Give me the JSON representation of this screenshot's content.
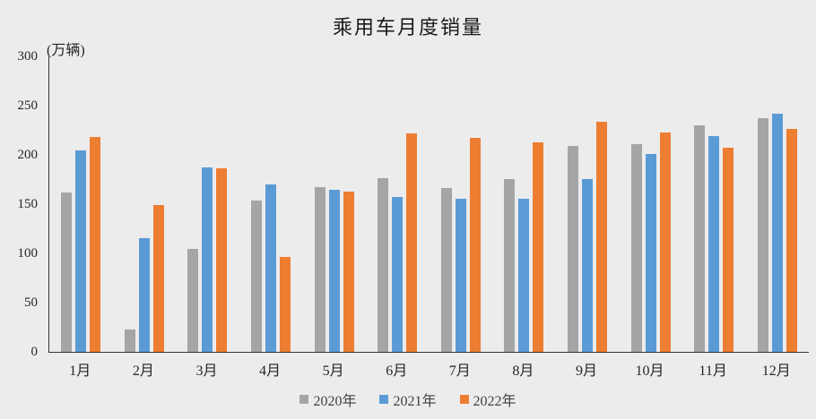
{
  "title": "乘用车月度销量",
  "y_axis": {
    "unit_label": "(万辆)"
  },
  "colors": {
    "background": "#ECECEC",
    "axis": "#333333",
    "series_2020": "#A5A5A5",
    "series_2021": "#5B9BD5",
    "series_2022": "#ED7D31"
  },
  "chart_data": {
    "type": "bar",
    "title": "乘用车月度销量",
    "ylabel": "(万辆)",
    "ylim": [
      0,
      300
    ],
    "y_ticks": [
      0,
      50,
      100,
      150,
      200,
      250,
      300
    ],
    "grid": false,
    "legend_position": "bottom",
    "categories": [
      "1月",
      "2月",
      "3月",
      "4月",
      "5月",
      "6月",
      "7月",
      "8月",
      "9月",
      "10月",
      "11月",
      "12月"
    ],
    "series": [
      {
        "name": "2020年",
        "color": "#A5A5A5",
        "values": [
          161.4,
          22.4,
          104.3,
          153.6,
          167.4,
          176.4,
          166.5,
          175.5,
          208.8,
          211.1,
          229.7,
          237.5
        ]
      },
      {
        "name": "2021年",
        "color": "#5B9BD5",
        "values": [
          204.5,
          115.5,
          187.4,
          170.4,
          164.6,
          156.9,
          155.1,
          155.2,
          175.1,
          200.7,
          219.2,
          242.2
        ]
      },
      {
        "name": "2022年",
        "color": "#ED7D31",
        "values": [
          218.6,
          148.7,
          186.4,
          96.5,
          162.3,
          222.2,
          217.4,
          212.5,
          233.2,
          223.1,
          207.5,
          226.3
        ]
      }
    ]
  }
}
